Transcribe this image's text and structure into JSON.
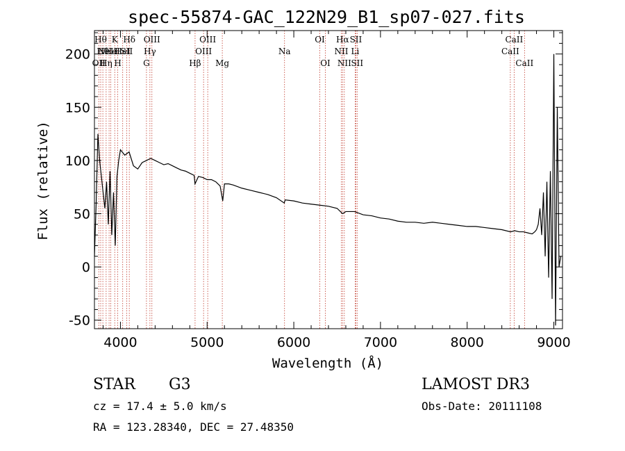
{
  "chart_data": {
    "type": "line",
    "title": "spec-55874-GAC_122N29_B1_sp07-027.fits",
    "xlabel": "Wavelength (Å)",
    "ylabel": "Flux (relative)",
    "xlim": [
      3700,
      9100
    ],
    "ylim": [
      -58,
      222
    ],
    "xticks": [
      4000,
      5000,
      6000,
      7000,
      8000,
      9000
    ],
    "yticks": [
      -50,
      0,
      50,
      100,
      150,
      200
    ],
    "grid": false,
    "line_color": "#000000",
    "marker_color": "#c0392b",
    "series": [
      {
        "x": [
          3700,
          3720,
          3740,
          3760,
          3780,
          3800,
          3820,
          3840,
          3860,
          3880,
          3900,
          3920,
          3940,
          3960,
          3980,
          4000,
          4050,
          4100,
          4150,
          4200,
          4250,
          4300,
          4350,
          4400,
          4450,
          4500,
          4550,
          4600,
          4650,
          4700,
          4750,
          4800,
          4850,
          4860,
          4900,
          4950,
          5000,
          5050,
          5100,
          5150,
          5180,
          5200,
          5250,
          5300,
          5400,
          5500,
          5600,
          5700,
          5800,
          5890,
          5900,
          6000,
          6100,
          6200,
          6300,
          6400,
          6500,
          6563,
          6600,
          6700,
          6800,
          6900,
          7000,
          7100,
          7200,
          7300,
          7400,
          7500,
          7600,
          7700,
          7800,
          7900,
          8000,
          8100,
          8200,
          8300,
          8400,
          8500,
          8550,
          8600,
          8650,
          8700,
          8750,
          8780,
          8800,
          8820,
          8840,
          8860,
          8880,
          8900,
          8920,
          8940,
          8960,
          8980,
          9000,
          9020,
          9040,
          9060,
          9080
        ],
        "y": [
          10,
          60,
          125,
          100,
          85,
          70,
          55,
          80,
          40,
          90,
          30,
          70,
          20,
          85,
          100,
          110,
          105,
          108,
          95,
          92,
          98,
          100,
          102,
          100,
          98,
          96,
          97,
          95,
          93,
          91,
          90,
          88,
          86,
          78,
          85,
          84,
          82,
          82,
          80,
          76,
          62,
          78,
          78,
          77,
          74,
          72,
          70,
          68,
          65,
          60,
          63,
          62,
          60,
          59,
          58,
          57,
          55,
          50,
          52,
          52,
          49,
          48,
          46,
          45,
          43,
          42,
          42,
          41,
          42,
          41,
          40,
          39,
          38,
          38,
          37,
          36,
          35,
          33,
          34,
          33,
          33,
          32,
          31,
          33,
          35,
          40,
          55,
          30,
          70,
          10,
          80,
          -10,
          90,
          -30,
          200,
          -55,
          150,
          0,
          10
        ]
      }
    ],
    "spectral_lines": [
      {
        "x": 3750,
        "label": "OII",
        "row": 3
      },
      {
        "x": 3772,
        "label": "Hθ",
        "row": 1
      },
      {
        "x": 3797,
        "label": "Hθ",
        "row": 2
      },
      {
        "x": 3835,
        "label": "Hη",
        "row": 3
      },
      {
        "x": 3869,
        "label": "NeIII",
        "row": 2
      },
      {
        "x": 3889,
        "label": "He",
        "row": 2
      },
      {
        "x": 3934,
        "label": "K",
        "row": 1
      },
      {
        "x": 3969,
        "label": "H",
        "row": 3
      },
      {
        "x": 4026,
        "label": "HeI",
        "row": 2
      },
      {
        "x": 4072,
        "label": "SII",
        "row": 2
      },
      {
        "x": 4102,
        "label": "Hδ",
        "row": 1
      },
      {
        "x": 4300,
        "label": "G",
        "row": 3
      },
      {
        "x": 4340,
        "label": "Hγ",
        "row": 2
      },
      {
        "x": 4363,
        "label": "OIII",
        "row": 1
      },
      {
        "x": 4861,
        "label": "Hβ",
        "row": 3
      },
      {
        "x": 4959,
        "label": "OIII",
        "row": 2
      },
      {
        "x": 5007,
        "label": "OIII",
        "row": 1
      },
      {
        "x": 5175,
        "label": "Mg",
        "row": 3
      },
      {
        "x": 5893,
        "label": "Na",
        "row": 2
      },
      {
        "x": 6300,
        "label": "OI",
        "row": 1
      },
      {
        "x": 6364,
        "label": "OI",
        "row": 3
      },
      {
        "x": 6548,
        "label": "NII",
        "row": 2
      },
      {
        "x": 6563,
        "label": "Hα",
        "row": 1
      },
      {
        "x": 6583,
        "label": "NII",
        "row": 3
      },
      {
        "x": 6708,
        "label": "Li",
        "row": 2
      },
      {
        "x": 6716,
        "label": "SII",
        "row": 1
      },
      {
        "x": 6731,
        "label": "SII",
        "row": 3
      },
      {
        "x": 8498,
        "label": "CaII",
        "row": 2
      },
      {
        "x": 8542,
        "label": "CaII",
        "row": 1
      },
      {
        "x": 8662,
        "label": "CaII",
        "row": 3
      }
    ]
  },
  "footer": {
    "class_label": "STAR",
    "subclass": "G3",
    "survey": "LAMOST DR3",
    "cz": "cz = 17.4 ± 5.0 km/s",
    "obs_date": "Obs-Date: 20111108",
    "coords": "RA = 123.28340, DEC =  27.48350"
  }
}
